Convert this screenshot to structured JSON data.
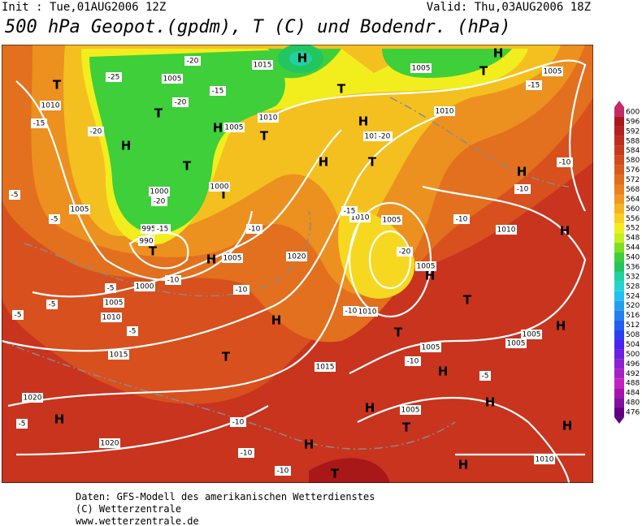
{
  "header": {
    "init": "Init : Tue,01AUG2006 12Z",
    "valid": "Valid: Thu,03AUG2006 18Z",
    "title": "500 hPa Geopot.(gpdm), T (C) und Bodendr. (hPa)"
  },
  "legend": {
    "levels": [
      600,
      596,
      592,
      588,
      584,
      580,
      576,
      572,
      568,
      564,
      560,
      556,
      552,
      548,
      544,
      540,
      536,
      532,
      528,
      524,
      520,
      516,
      512,
      508,
      504,
      500,
      496,
      492,
      488,
      484,
      480,
      476
    ],
    "colors": [
      "#c42a6a",
      "#a81818",
      "#b42020",
      "#c02c1e",
      "#c83a1e",
      "#d24a1e",
      "#da5a1e",
      "#e26c1e",
      "#ea8020",
      "#f09820",
      "#f4b420",
      "#f8d020",
      "#f2ee1e",
      "#c6ee20",
      "#7ede20",
      "#3ecf3a",
      "#22c660",
      "#22d0a0",
      "#22d6d0",
      "#22c0f0",
      "#22a0f0",
      "#2280f0",
      "#2260f0",
      "#2a40f0",
      "#4a24ee",
      "#6a20e0",
      "#8a20d2",
      "#a820c4",
      "#c420c0",
      "#a810b0",
      "#8410a0",
      "#600080"
    ]
  },
  "map": {
    "labels": [
      "T",
      "T",
      "H",
      "T",
      "T",
      "H",
      "H",
      "T",
      "T",
      "H",
      "T",
      "H",
      "H",
      "H",
      "H",
      "T",
      "T",
      "H",
      "T",
      "H",
      "H",
      "H",
      "H",
      "H",
      "T",
      "T",
      "H",
      "H",
      "T",
      "H",
      "H",
      "T",
      "H",
      "1015",
      "1005",
      "1010",
      "1005",
      "1010",
      "1005",
      "1010",
      "1000",
      "1000",
      "995",
      "990",
      "1005",
      "1020",
      "1010",
      "1005",
      "1005",
      "1000",
      "1005",
      "1010",
      "1015",
      "1020",
      "1020",
      "1015",
      "1005",
      "1005",
      "1010",
      "1005",
      "1010",
      "1005",
      "1005",
      "1010",
      "1015",
      "1005",
      "-20",
      "-25",
      "-20",
      "-15",
      "-20",
      "-15",
      "-20",
      "-15",
      "-10",
      "-15",
      "-5",
      "-5",
      "-10",
      "-10",
      "-10",
      "-5",
      "-5",
      "-5",
      "-5",
      "-10",
      "-10",
      "-10",
      "-5",
      "-10",
      "-10",
      "-15",
      "-20",
      "-20",
      "-10",
      "-5",
      "-10"
    ]
  },
  "footer": {
    "line1": "Daten: GFS-Modell des amerikanischen Wetterdienstes",
    "line2": "(C) Wetterzentrale",
    "line3": "www.wetterzentrale.de"
  }
}
